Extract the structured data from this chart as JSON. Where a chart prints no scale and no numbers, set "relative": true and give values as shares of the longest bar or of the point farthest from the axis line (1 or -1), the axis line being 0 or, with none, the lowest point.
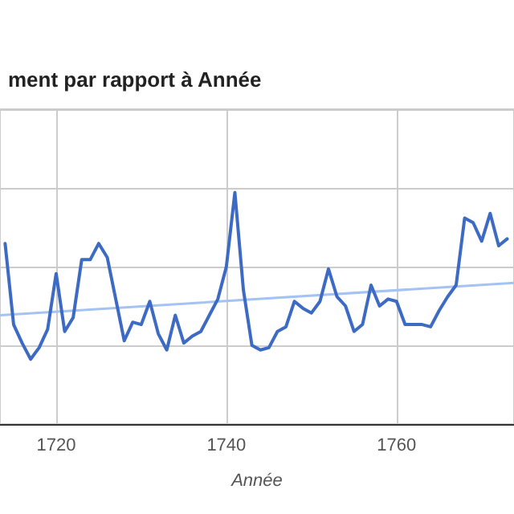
{
  "chart_data": {
    "type": "line",
    "title": "ment par rapport à Année",
    "xlabel": "Année",
    "relative": true,
    "x": [
      1714,
      1715,
      1716,
      1717,
      1718,
      1719,
      1720,
      1721,
      1722,
      1723,
      1724,
      1725,
      1726,
      1727,
      1728,
      1729,
      1730,
      1731,
      1732,
      1733,
      1734,
      1735,
      1736,
      1737,
      1738,
      1739,
      1740,
      1741,
      1742,
      1743,
      1744,
      1745,
      1746,
      1747,
      1748,
      1749,
      1750,
      1751,
      1752,
      1753,
      1754,
      1755,
      1756,
      1757,
      1758,
      1759,
      1760,
      1761,
      1762,
      1763,
      1764,
      1765,
      1766,
      1767,
      1768,
      1769,
      1770,
      1771,
      1772,
      1773
    ],
    "series": [
      {
        "color": "#3d6bc4",
        "values": [
          0.78,
          0.43,
          0.35,
          0.28,
          0.33,
          0.41,
          0.65,
          0.4,
          0.46,
          0.71,
          0.71,
          0.78,
          0.72,
          0.54,
          0.36,
          0.44,
          0.43,
          0.53,
          0.39,
          0.32,
          0.47,
          0.35,
          0.38,
          0.4,
          0.47,
          0.54,
          0.68,
          1.0,
          0.58,
          0.34,
          0.32,
          0.33,
          0.4,
          0.42,
          0.53,
          0.5,
          0.48,
          0.53,
          0.67,
          0.55,
          0.51,
          0.4,
          0.43,
          0.6,
          0.51,
          0.54,
          0.53,
          0.43,
          0.43,
          0.43,
          0.42,
          0.49,
          0.55,
          0.6,
          0.89,
          0.87,
          0.79,
          0.91,
          0.77,
          0.8
        ]
      },
      {
        "type": "line",
        "color": "#a4c2f4",
        "x": [
          1713.4,
          1773.8
        ],
        "values": [
          0.47,
          0.61
        ]
      }
    ],
    "xlim": [
      1713.4,
      1773.8
    ],
    "xticks": [
      1720,
      1740,
      1760
    ],
    "grid": true,
    "marker": "none",
    "line_style": "solid"
  }
}
